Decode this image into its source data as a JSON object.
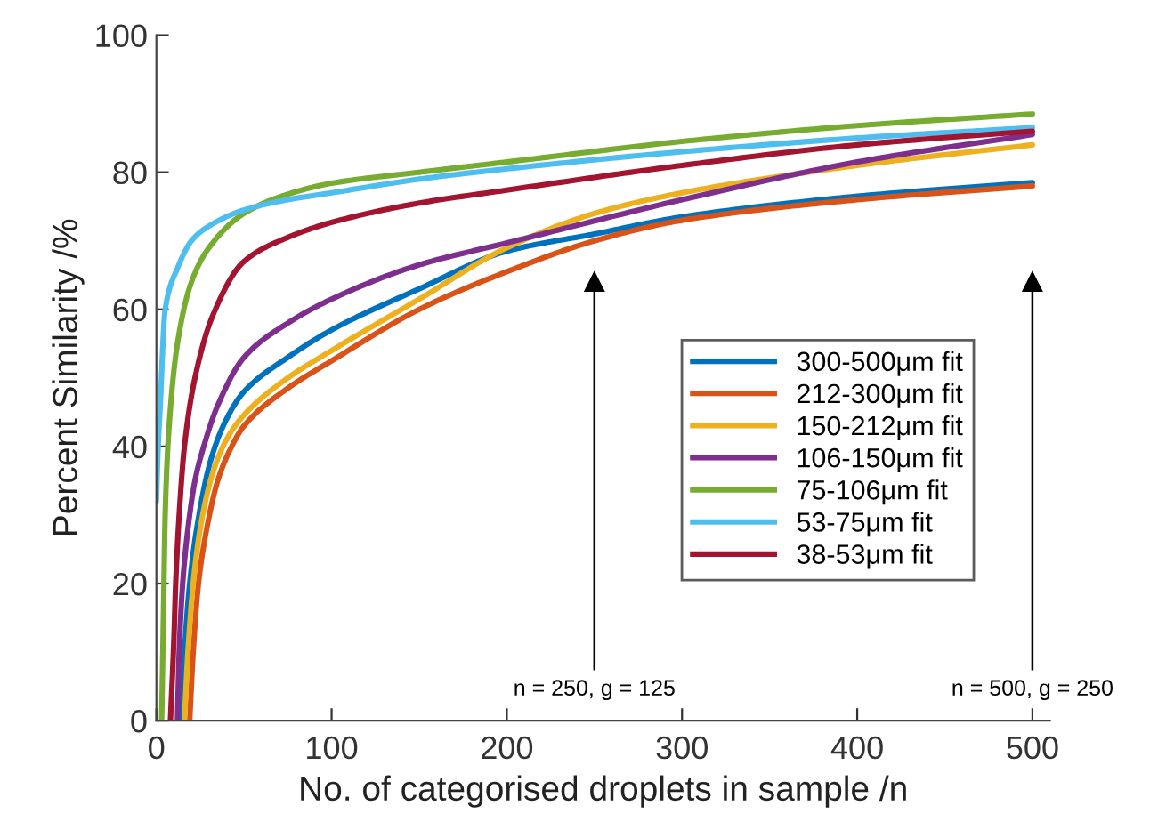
{
  "chart_data": {
    "type": "line",
    "xlabel": "No. of categorised droplets in sample /n",
    "ylabel": "Percent Similarity /%",
    "xlim": [
      0,
      510
    ],
    "xticks": [
      0,
      100,
      200,
      300,
      400,
      500
    ],
    "ylim": [
      0,
      100
    ],
    "yticks": [
      0,
      20,
      40,
      60,
      80,
      100
    ],
    "grid": false,
    "legend": "right",
    "marker": "none",
    "line_style": "solid",
    "ref_lines": [
      {
        "axis": "x",
        "value": 250,
        "label": "n = 250, g = 125",
        "color": "#000000"
      },
      {
        "axis": "x",
        "value": 500,
        "label": "n = 500, g = 250",
        "color": "#000000"
      }
    ],
    "series": [
      {
        "name": "300-500μm fit",
        "color": "#0072bd",
        "x": [
          14,
          16,
          19,
          23,
          31,
          40,
          50,
          75,
          100,
          150,
          200,
          250,
          300,
          400,
          500
        ],
        "values": [
          0,
          10,
          20,
          28,
          38,
          44,
          48,
          53,
          57,
          63,
          68.5,
          71,
          73.5,
          76.5,
          78.5
        ]
      },
      {
        "name": "212-300μm fit",
        "color": "#d95319",
        "x": [
          19,
          21,
          24,
          28,
          35,
          42,
          50,
          75,
          100,
          150,
          200,
          250,
          300,
          400,
          500
        ],
        "values": [
          0,
          10,
          20,
          27,
          35,
          39.5,
          43,
          48.5,
          52.5,
          60,
          65.5,
          70,
          73,
          76,
          78
        ]
      },
      {
        "name": "150-212μm fit",
        "color": "#edb120",
        "x": [
          16,
          18,
          21,
          25,
          32,
          40,
          50,
          75,
          100,
          150,
          200,
          250,
          300,
          400,
          500
        ],
        "values": [
          0,
          10,
          20,
          28,
          36,
          41,
          44.6,
          50,
          54,
          61.5,
          69,
          74,
          77,
          81,
          84
        ]
      },
      {
        "name": "106-150μm fit",
        "color": "#7e2f8e",
        "x": [
          12,
          13,
          15,
          18,
          22,
          27,
          35,
          50,
          75,
          100,
          150,
          200,
          300,
          400,
          500
        ],
        "values": [
          0,
          10,
          20,
          28,
          35,
          40,
          46,
          53,
          58,
          61.5,
          66.5,
          69.7,
          76,
          81.5,
          85.5
        ]
      },
      {
        "name": "75-106μm fit",
        "color": "#77ac30",
        "x": [
          3,
          4,
          5,
          7,
          12,
          20,
          30,
          50,
          75,
          100,
          150,
          200,
          300,
          400,
          500
        ],
        "values": [
          0,
          15,
          30,
          42,
          55,
          64,
          69,
          74,
          76.8,
          78.4,
          80,
          81.5,
          84.5,
          86.8,
          88.5
        ]
      },
      {
        "name": "53-75μm fit",
        "color": "#4dbeee",
        "x": [
          0,
          1,
          2,
          5,
          12,
          20,
          29,
          50,
          75,
          100,
          150,
          200,
          300,
          400,
          500
        ],
        "values": [
          32,
          40,
          45,
          60,
          66,
          70,
          72,
          74.5,
          76,
          77,
          79,
          80.5,
          83,
          85,
          86.5
        ]
      },
      {
        "name": "38-53μm fit",
        "color": "#a2142f",
        "x": [
          8,
          10,
          11,
          13,
          16,
          22,
          32,
          50,
          75,
          100,
          150,
          200,
          300,
          400,
          500
        ],
        "values": [
          0,
          12,
          20,
          30,
          40,
          50,
          59,
          67,
          70.5,
          72.7,
          75.5,
          77.4,
          81,
          84,
          86
        ]
      }
    ]
  }
}
